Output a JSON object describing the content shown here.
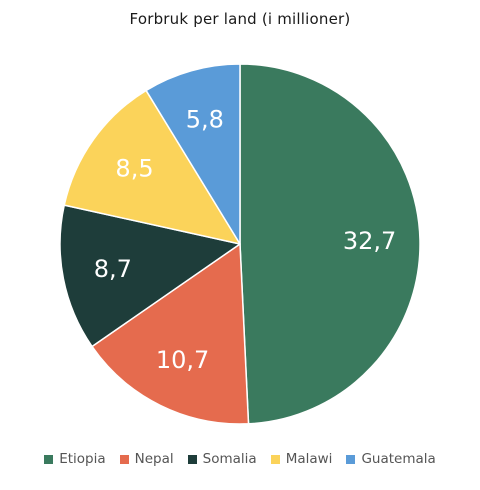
{
  "chart_data": {
    "type": "pie",
    "title": "Forbruk per land (i millioner)",
    "categories": [
      "Etiopia",
      "Nepal",
      "Somalia",
      "Malawi",
      "Guatemala"
    ],
    "values": [
      32.7,
      10.7,
      8.7,
      8.5,
      5.8
    ],
    "labels": [
      "32,7",
      "10,7",
      "8,7",
      "8,5",
      "5,8"
    ],
    "colors": [
      "#3a7a5e",
      "#e56b4e",
      "#1e3d3a",
      "#fbd35a",
      "#5a9bd8"
    ],
    "label_colors": [
      "#ffffff",
      "#ffffff",
      "#ffffff",
      "#ffffff",
      "#ffffff"
    ],
    "legend": {
      "placement": "bottom",
      "entries": [
        "Etiopia",
        "Nepal",
        "Somalia",
        "Malawi",
        "Guatemala"
      ]
    }
  }
}
